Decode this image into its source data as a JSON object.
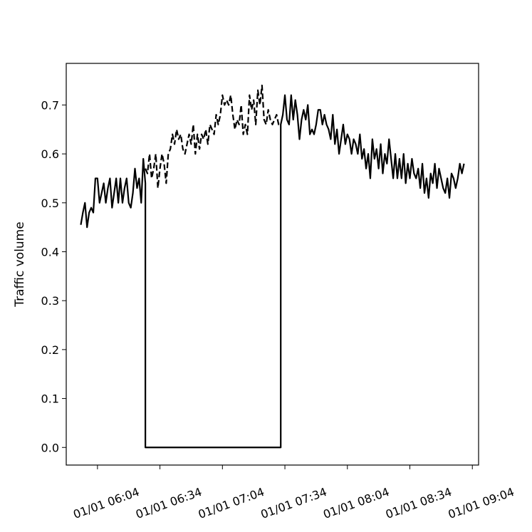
{
  "chart_data": {
    "type": "line",
    "title": "",
    "xlabel": "",
    "ylabel": "Traffic volume",
    "x_start": "01/01 05:56",
    "x_end": "01/01 09:00",
    "xlim": [
      "01/01 05:49",
      "01/01 09:07"
    ],
    "ylim": [
      -0.036,
      0.785
    ],
    "x_ticks": [
      "01/01 06:04",
      "01/01 06:34",
      "01/01 07:04",
      "01/01 07:34",
      "01/01 08:04",
      "01/01 08:34",
      "01/01 09:04"
    ],
    "y_ticks": [
      "0.0",
      "0.1",
      "0.2",
      "0.3",
      "0.4",
      "0.5",
      "0.6",
      "0.7"
    ],
    "grid": false,
    "legend": "none",
    "series": [
      {
        "style": "solid",
        "color": "#000000",
        "x": [
          "01/01 05:56",
          "01/01 05:57",
          "01/01 05:58",
          "01/01 05:59",
          "01/01 06:00",
          "01/01 06:01",
          "01/01 06:02",
          "01/01 06:03",
          "01/01 06:04",
          "01/01 06:05",
          "01/01 06:06",
          "01/01 06:07",
          "01/01 06:08",
          "01/01 06:09",
          "01/01 06:10",
          "01/01 06:11",
          "01/01 06:12",
          "01/01 06:13",
          "01/01 06:14",
          "01/01 06:15",
          "01/01 06:16",
          "01/01 06:17",
          "01/01 06:18",
          "01/01 06:19",
          "01/01 06:20",
          "01/01 06:21",
          "01/01 06:22",
          "01/01 06:23",
          "01/01 06:24",
          "01/01 06:25",
          "01/01 06:26",
          "01/01 06:27",
          "01/01 06:27",
          "01/01 07:32",
          "01/01 07:32",
          "01/01 07:33",
          "01/01 07:34",
          "01/01 07:35",
          "01/01 07:36",
          "01/01 07:37",
          "01/01 07:38",
          "01/01 07:39",
          "01/01 07:40",
          "01/01 07:41",
          "01/01 07:42",
          "01/01 07:43",
          "01/01 07:44",
          "01/01 07:45",
          "01/01 07:46",
          "01/01 07:47",
          "01/01 07:48",
          "01/01 07:49",
          "01/01 07:50",
          "01/01 07:51",
          "01/01 07:52",
          "01/01 07:53",
          "01/01 07:54",
          "01/01 07:55",
          "01/01 07:56",
          "01/01 07:57",
          "01/01 07:58",
          "01/01 07:59",
          "01/01 08:00",
          "01/01 08:01",
          "01/01 08:02",
          "01/01 08:03",
          "01/01 08:04",
          "01/01 08:05",
          "01/01 08:06",
          "01/01 08:07",
          "01/01 08:08",
          "01/01 08:09",
          "01/01 08:10",
          "01/01 08:11",
          "01/01 08:12",
          "01/01 08:13",
          "01/01 08:14",
          "01/01 08:15",
          "01/01 08:16",
          "01/01 08:17",
          "01/01 08:18",
          "01/01 08:19",
          "01/01 08:20",
          "01/01 08:21",
          "01/01 08:22",
          "01/01 08:23",
          "01/01 08:24",
          "01/01 08:25",
          "01/01 08:26",
          "01/01 08:27",
          "01/01 08:28",
          "01/01 08:29",
          "01/01 08:30",
          "01/01 08:31",
          "01/01 08:32",
          "01/01 08:33",
          "01/01 08:34",
          "01/01 08:35",
          "01/01 08:36",
          "01/01 08:37",
          "01/01 08:38",
          "01/01 08:39",
          "01/01 08:40",
          "01/01 08:41",
          "01/01 08:42",
          "01/01 08:43",
          "01/01 08:44",
          "01/01 08:45",
          "01/01 08:46",
          "01/01 08:47",
          "01/01 08:48",
          "01/01 08:49",
          "01/01 08:50",
          "01/01 08:51",
          "01/01 08:52",
          "01/01 08:53",
          "01/01 08:54",
          "01/01 08:55",
          "01/01 08:56",
          "01/01 08:57",
          "01/01 08:58",
          "01/01 08:59",
          "01/01 09:00"
        ],
        "y": [
          0.455,
          0.48,
          0.5,
          0.45,
          0.48,
          0.49,
          0.48,
          0.55,
          0.55,
          0.5,
          0.52,
          0.54,
          0.5,
          0.53,
          0.55,
          0.49,
          0.52,
          0.55,
          0.5,
          0.55,
          0.5,
          0.53,
          0.55,
          0.5,
          0.49,
          0.52,
          0.57,
          0.53,
          0.55,
          0.5,
          0.59,
          0.54,
          0.0,
          0.0,
          0.66,
          0.68,
          0.72,
          0.67,
          0.66,
          0.72,
          0.67,
          0.71,
          0.68,
          0.63,
          0.67,
          0.69,
          0.67,
          0.7,
          0.64,
          0.65,
          0.64,
          0.66,
          0.69,
          0.69,
          0.66,
          0.68,
          0.66,
          0.65,
          0.63,
          0.68,
          0.62,
          0.65,
          0.6,
          0.63,
          0.66,
          0.62,
          0.64,
          0.63,
          0.6,
          0.63,
          0.62,
          0.6,
          0.64,
          0.59,
          0.61,
          0.57,
          0.6,
          0.55,
          0.63,
          0.59,
          0.61,
          0.57,
          0.62,
          0.56,
          0.6,
          0.58,
          0.63,
          0.59,
          0.55,
          0.6,
          0.55,
          0.59,
          0.55,
          0.6,
          0.54,
          0.58,
          0.55,
          0.59,
          0.56,
          0.55,
          0.57,
          0.53,
          0.58,
          0.52,
          0.55,
          0.51,
          0.56,
          0.54,
          0.58,
          0.53,
          0.57,
          0.55,
          0.53,
          0.52,
          0.55,
          0.51,
          0.56,
          0.55,
          0.53,
          0.55,
          0.58,
          0.56,
          0.58
        ]
      },
      {
        "style": "dashed",
        "color": "#000000",
        "x": [
          "01/01 06:27",
          "01/01 06:28",
          "01/01 06:29",
          "01/01 06:30",
          "01/01 06:31",
          "01/01 06:32",
          "01/01 06:33",
          "01/01 06:34",
          "01/01 06:35",
          "01/01 06:36",
          "01/01 06:37",
          "01/01 06:38",
          "01/01 06:39",
          "01/01 06:40",
          "01/01 06:41",
          "01/01 06:42",
          "01/01 06:43",
          "01/01 06:44",
          "01/01 06:45",
          "01/01 06:46",
          "01/01 06:47",
          "01/01 06:48",
          "01/01 06:49",
          "01/01 06:50",
          "01/01 06:51",
          "01/01 06:52",
          "01/01 06:53",
          "01/01 06:54",
          "01/01 06:55",
          "01/01 06:56",
          "01/01 06:57",
          "01/01 06:58",
          "01/01 06:59",
          "01/01 07:00",
          "01/01 07:01",
          "01/01 07:02",
          "01/01 07:03",
          "01/01 07:04",
          "01/01 07:05",
          "01/01 07:06",
          "01/01 07:07",
          "01/01 07:08",
          "01/01 07:09",
          "01/01 07:10",
          "01/01 07:11",
          "01/01 07:12",
          "01/01 07:13",
          "01/01 07:14",
          "01/01 07:15",
          "01/01 07:16",
          "01/01 07:17",
          "01/01 07:18",
          "01/01 07:19",
          "01/01 07:20",
          "01/01 07:21",
          "01/01 07:22",
          "01/01 07:23",
          "01/01 07:24",
          "01/01 07:25",
          "01/01 07:26",
          "01/01 07:27",
          "01/01 07:28",
          "01/01 07:29",
          "01/01 07:30",
          "01/01 07:31",
          "01/01 07:32"
        ],
        "y": [
          0.57,
          0.56,
          0.6,
          0.55,
          0.57,
          0.6,
          0.53,
          0.57,
          0.6,
          0.58,
          0.54,
          0.6,
          0.61,
          0.64,
          0.62,
          0.65,
          0.63,
          0.64,
          0.61,
          0.6,
          0.62,
          0.64,
          0.62,
          0.66,
          0.6,
          0.64,
          0.61,
          0.64,
          0.63,
          0.65,
          0.62,
          0.66,
          0.65,
          0.64,
          0.68,
          0.66,
          0.68,
          0.72,
          0.7,
          0.71,
          0.7,
          0.72,
          0.68,
          0.65,
          0.67,
          0.66,
          0.7,
          0.64,
          0.66,
          0.64,
          0.72,
          0.69,
          0.71,
          0.66,
          0.73,
          0.7,
          0.74,
          0.67,
          0.66,
          0.69,
          0.67,
          0.66,
          0.67,
          0.68,
          0.66,
          0.66
        ]
      }
    ]
  }
}
